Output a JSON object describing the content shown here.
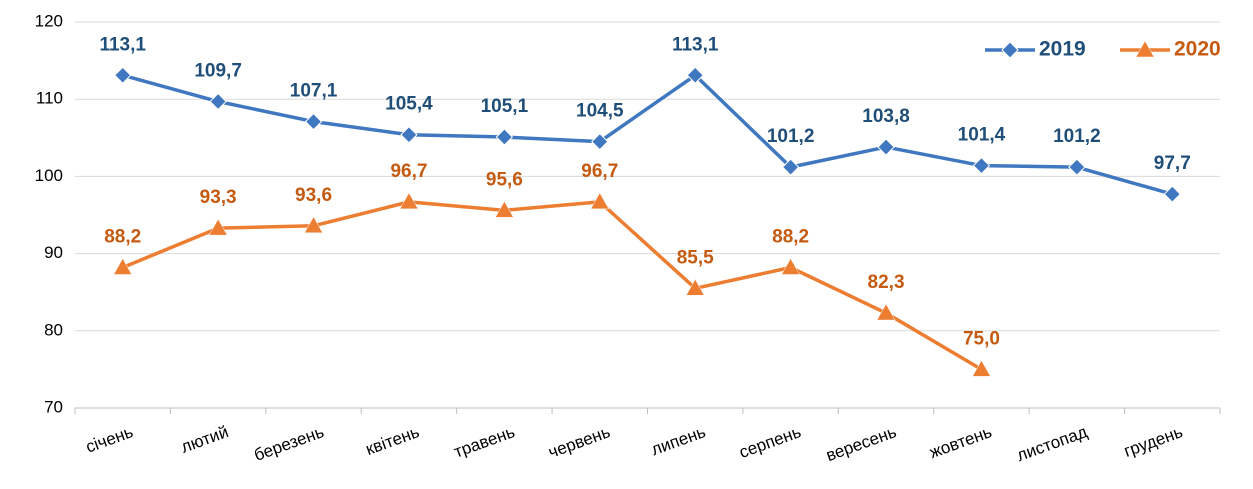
{
  "chart_data": {
    "type": "line",
    "categories": [
      "січень",
      "лютий",
      "березень",
      "квітень",
      "травень",
      "червень",
      "липень",
      "серпень",
      "вересень",
      "жовтень",
      "листопад",
      "грудень"
    ],
    "series": [
      {
        "name": "2019",
        "color": "#3f78c0",
        "label_color": "#1f4e79",
        "marker": "diamond",
        "values": [
          113.1,
          109.7,
          107.1,
          105.4,
          105.1,
          104.5,
          113.1,
          101.2,
          103.8,
          101.4,
          101.2,
          97.7
        ],
        "value_labels": [
          "113,1",
          "109,7",
          "107,1",
          "105,4",
          "105,1",
          "104,5",
          "113,1",
          "101,2",
          "103,8",
          "101,4",
          "101,2",
          "97,7"
        ]
      },
      {
        "name": "2020",
        "color": "#ed7d31",
        "label_color": "#c55a11",
        "marker": "triangle",
        "values": [
          88.2,
          93.3,
          93.6,
          96.7,
          95.6,
          96.7,
          85.5,
          88.2,
          82.3,
          75.0,
          null,
          null
        ],
        "value_labels": [
          "88,2",
          "93,3",
          "93,6",
          "96,7",
          "95,6",
          "96,7",
          "85,5",
          "88,2",
          "82,3",
          "75,0",
          null,
          null
        ]
      }
    ],
    "ylim": [
      70,
      120
    ],
    "yticks": [
      70,
      80,
      90,
      100,
      110,
      120
    ],
    "grid": true,
    "legend": "top-right"
  }
}
